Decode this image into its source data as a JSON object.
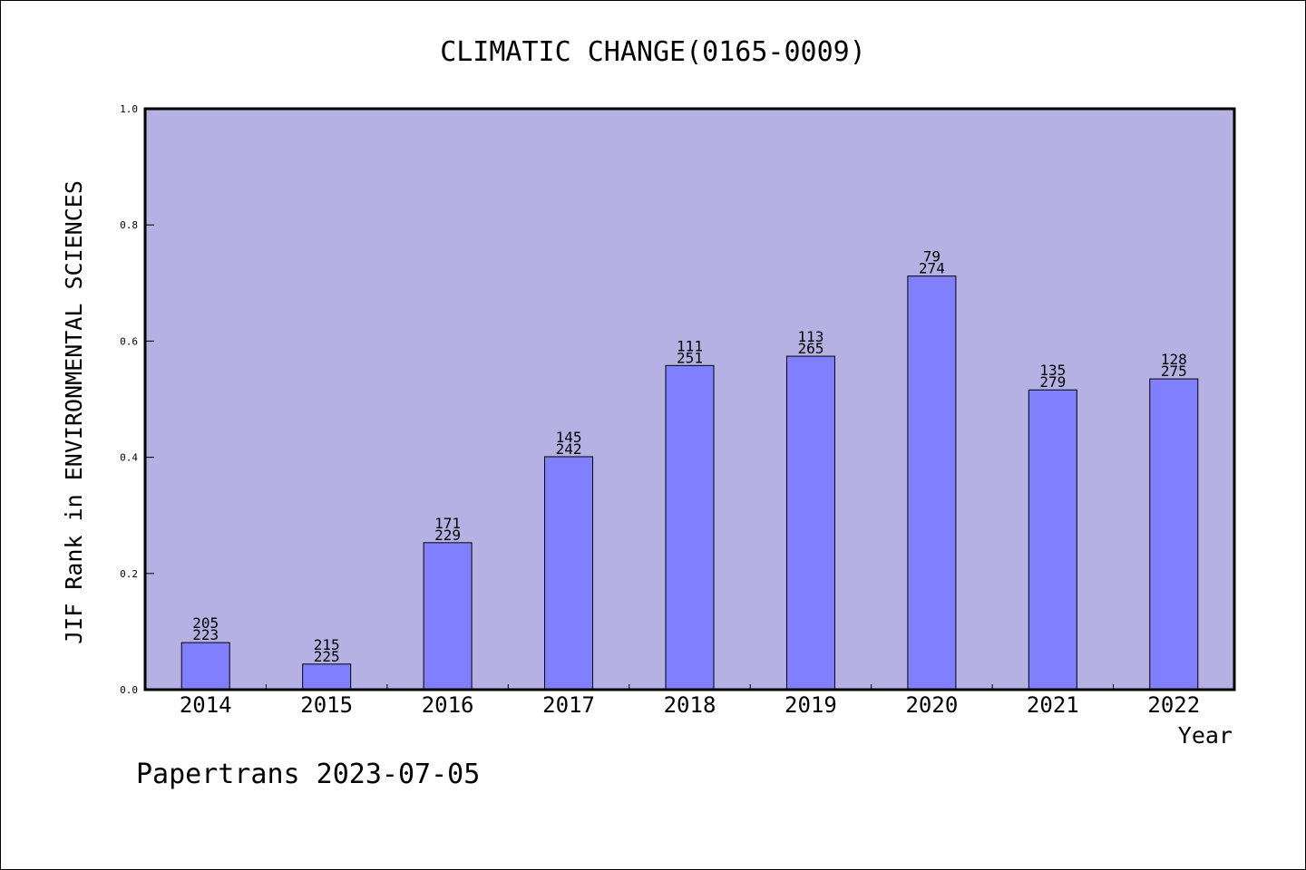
{
  "chart_data": {
    "type": "bar",
    "title": "CLIMATIC CHANGE(0165-0009)",
    "xlabel": "Year",
    "ylabel": "JIF Rank in ENVIRONMENTAL SCIENCES",
    "ylim": [
      0,
      1.0
    ],
    "yticks": [
      "0.0",
      "0.2",
      "0.4",
      "0.6",
      "0.8",
      "1.0"
    ],
    "grid": false,
    "categories": [
      "2014",
      "2015",
      "2016",
      "2017",
      "2018",
      "2019",
      "2020",
      "2021",
      "2022"
    ],
    "values": [
      0.081,
      0.044,
      0.253,
      0.401,
      0.558,
      0.574,
      0.712,
      0.516,
      0.535
    ],
    "ranks": [
      "205",
      "215",
      "171",
      "145",
      "111",
      "113",
      "79",
      "135",
      "128"
    ],
    "totals": [
      "223",
      "225",
      "229",
      "242",
      "251",
      "265",
      "274",
      "279",
      "275"
    ],
    "colors": {
      "plot_background": "#b5b1e3",
      "bar_fill": "#8080ff",
      "bar_stroke": "#000000"
    }
  },
  "footer": {
    "text": "Papertrans 2023-07-05"
  }
}
